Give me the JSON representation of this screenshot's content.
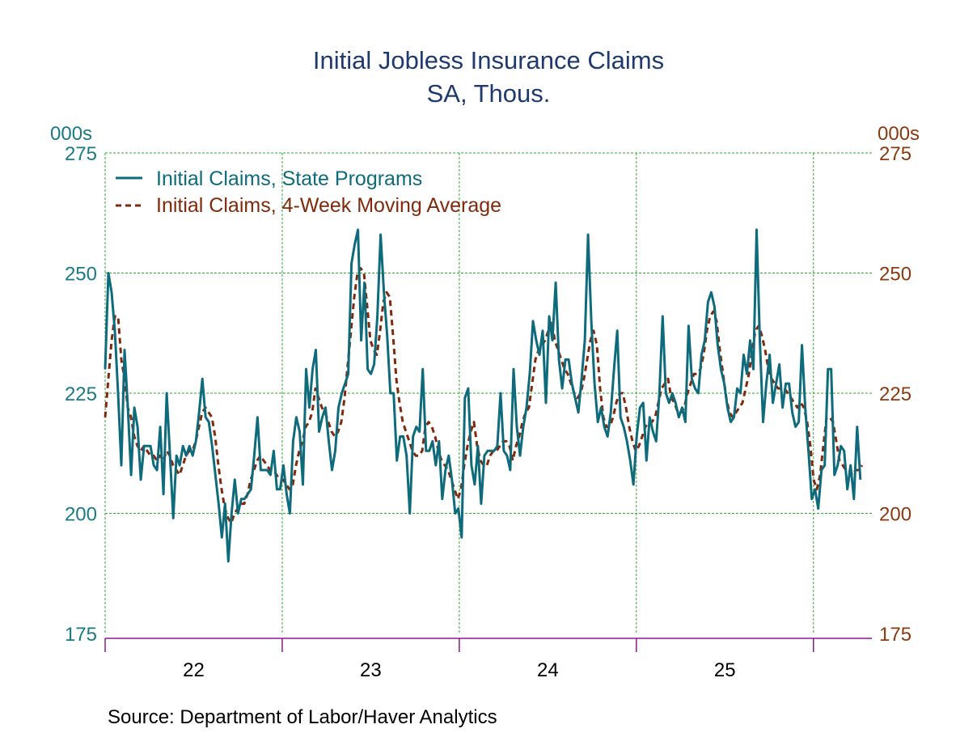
{
  "chart_data": {
    "type": "line",
    "title": "Initial Jobless Insurance Claims",
    "subtitle": "SA, Thous.",
    "left_unit": "000s",
    "right_unit": "000s",
    "ylim": [
      175,
      275
    ],
    "yticks": [
      "275",
      "250",
      "225",
      "200",
      "175"
    ],
    "ytick_values": [
      275,
      250,
      225,
      200,
      175
    ],
    "xlim": [
      2022,
      2026.33
    ],
    "xtick_years": [
      2022,
      2023,
      2024,
      2025,
      2026
    ],
    "xtick_labels": [
      "22",
      "23",
      "24",
      "25"
    ],
    "xtick_label_years": [
      2022.5,
      2023.5,
      2024.5,
      2025.5
    ],
    "grid": true,
    "legend_placement": "top-left",
    "source": "Source:  Department of Labor/Haver Analytics",
    "colors": {
      "title": "#1f3a6e",
      "left_axis": "#1a7a86",
      "right_axis": "#8a3a10",
      "grid": "#33aa33",
      "x_axis": "#8b1a8b"
    },
    "series": [
      {
        "name": "Initial Claims, State Programs",
        "color": "#0e6b7c",
        "style": "solid",
        "x_first": 2022.0,
        "x_last": 2026.265,
        "values": [
          230,
          250,
          246,
          238,
          225,
          210,
          234,
          222,
          208,
          222,
          218,
          207,
          214,
          214,
          214,
          210,
          209,
          218,
          204,
          225,
          212,
          199,
          212,
          210,
          214,
          212,
          214,
          212,
          215,
          221,
          228,
          220,
          219,
          214,
          208,
          202,
          195,
          202,
          190,
          200,
          207,
          200,
          203,
          203,
          204,
          205,
          212,
          220,
          209,
          209,
          209,
          208,
          213,
          205,
          205,
          210,
          204,
          200,
          215,
          220,
          217,
          206,
          230,
          222,
          230,
          234,
          217,
          220,
          222,
          215,
          209,
          213,
          222,
          225,
          227,
          229,
          252,
          256,
          259,
          236,
          248,
          230,
          229,
          231,
          241,
          258,
          246,
          237,
          225,
          225,
          211,
          216,
          216,
          212,
          200,
          216,
          218,
          217,
          230,
          213,
          213,
          215,
          210,
          215,
          203,
          209,
          212,
          207,
          200,
          201,
          195,
          224,
          226,
          210,
          206,
          214,
          202,
          212,
          213,
          213,
          213,
          214,
          225,
          213,
          212,
          209,
          230,
          218,
          212,
          218,
          222,
          229,
          240,
          236,
          233,
          238,
          223,
          241,
          236,
          248,
          232,
          226,
          232,
          232,
          227,
          224,
          221,
          228,
          236,
          258,
          240,
          227,
          219,
          222,
          218,
          216,
          221,
          230,
          238,
          220,
          218,
          215,
          211,
          206,
          216,
          222,
          223,
          211,
          220,
          217,
          215,
          225,
          241,
          225,
          223,
          225,
          223,
          220,
          222,
          219,
          239,
          228,
          226,
          225,
          233,
          236,
          244,
          246,
          243,
          235,
          230,
          227,
          222,
          219,
          220,
          226,
          225,
          233,
          229,
          236,
          230,
          259,
          236,
          219,
          227,
          233,
          223,
          227,
          231,
          222,
          227,
          227,
          221,
          218,
          219,
          235,
          222,
          213,
          203,
          205,
          201,
          209,
          210,
          230,
          230,
          208,
          210,
          214,
          213,
          205,
          210,
          203,
          218,
          207
        ]
      },
      {
        "name": "Initial Claims, 4-Week Moving Average",
        "color": "#7f2a0c",
        "style": "dashed",
        "x_first": 2022.0,
        "x_last": 2026.275,
        "values": [
          220,
          228,
          236,
          241,
          241,
          232,
          228,
          222,
          220,
          216,
          214,
          213,
          214,
          213,
          212,
          212,
          211,
          212,
          211,
          213,
          212,
          210,
          209,
          208,
          210,
          212,
          213,
          213,
          215,
          218,
          221,
          222,
          221,
          220,
          216,
          210,
          205,
          201,
          199,
          198,
          200,
          201,
          202,
          202,
          204,
          207,
          209,
          211,
          212,
          211,
          210,
          209,
          209,
          208,
          207,
          207,
          206,
          205,
          206,
          210,
          213,
          215,
          218,
          219,
          221,
          226,
          224,
          222,
          221,
          219,
          217,
          216,
          217,
          219,
          224,
          231,
          238,
          245,
          250,
          251,
          250,
          243,
          236,
          234,
          233,
          238,
          244,
          246,
          245,
          237,
          228,
          223,
          219,
          217,
          215,
          213,
          212,
          212,
          213,
          218,
          219,
          218,
          216,
          213,
          211,
          210,
          209,
          207,
          205,
          203,
          205,
          210,
          214,
          217,
          219,
          214,
          211,
          210,
          210,
          212,
          213,
          213,
          214,
          215,
          215,
          214,
          211,
          214,
          216,
          219,
          221,
          222,
          227,
          232,
          234,
          235,
          236,
          238,
          240,
          236,
          234,
          232,
          230,
          229,
          227,
          225,
          224,
          225,
          228,
          232,
          236,
          238,
          235,
          226,
          220,
          218,
          218,
          220,
          223,
          225,
          225,
          222,
          218,
          215,
          213,
          214,
          216,
          218,
          219,
          219,
          220,
          223,
          226,
          227,
          228,
          224,
          223,
          221,
          221,
          222,
          225,
          227,
          229,
          229,
          230,
          233,
          238,
          241,
          242,
          240,
          234,
          229,
          224,
          221,
          220,
          221,
          222,
          223,
          226,
          229,
          234,
          238,
          239,
          237,
          234,
          230,
          228,
          227,
          226,
          226,
          226,
          225,
          224,
          223,
          222,
          223,
          222,
          219,
          214,
          207,
          205,
          208,
          214,
          220,
          220,
          219,
          215,
          211,
          210,
          209,
          209,
          208,
          209,
          209,
          210
        ]
      }
    ]
  }
}
